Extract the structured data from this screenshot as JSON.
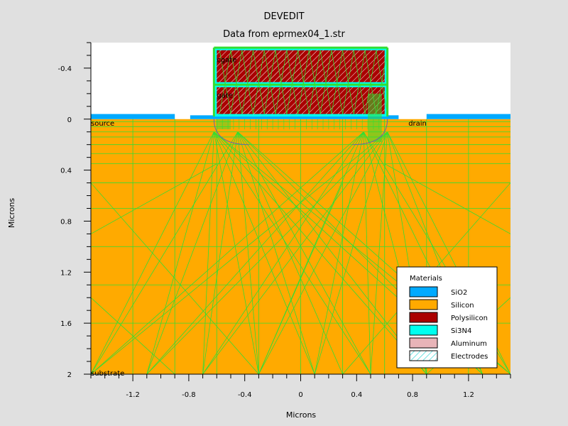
{
  "chart_data": {
    "type": "device_structure",
    "title": "DEVEDIT",
    "subtitle": "Data from eprmex04_1.str",
    "xlabel": "Microns",
    "ylabel": "Microns",
    "xlim": [
      -1.5,
      1.5
    ],
    "ylim": [
      2.0,
      -0.6
    ],
    "y_inverted": true,
    "x_ticks": [
      -1.2,
      -0.8,
      -0.4,
      0,
      0.4,
      0.8,
      1.2
    ],
    "x_tick_labels": [
      "-1.2",
      "-0.8",
      "-0.4",
      "0",
      "0.4",
      "0.8",
      "1.2"
    ],
    "y_ticks": [
      -0.4,
      0,
      0.4,
      0.8,
      1.2,
      1.6,
      2.0
    ],
    "y_tick_labels": [
      "-0.4",
      "0",
      "0.4",
      "0.8",
      "1.2",
      "1.6",
      "2"
    ],
    "mesh_color": "#33dd33",
    "regions": [
      {
        "material": "Silicon",
        "x": [
          -1.5,
          1.5
        ],
        "y": [
          0.0,
          2.0
        ]
      },
      {
        "material": "SiO2",
        "x": [
          -1.5,
          -0.9
        ],
        "y": [
          -0.04,
          0.0
        ]
      },
      {
        "material": "SiO2",
        "x": [
          0.9,
          1.5
        ],
        "y": [
          -0.04,
          0.0
        ]
      },
      {
        "material": "SiO2",
        "x": [
          -0.79,
          0.7
        ],
        "y": [
          -0.03,
          0.0
        ]
      },
      {
        "material": "Si3N4",
        "x": [
          -0.62,
          0.62
        ],
        "y": [
          -0.56,
          -0.02
        ]
      },
      {
        "material": "Polysilicon",
        "x": [
          -0.6,
          0.6
        ],
        "y": [
          -0.54,
          -0.29
        ]
      },
      {
        "material": "Polysilicon",
        "x": [
          -0.6,
          0.6
        ],
        "y": [
          -0.25,
          -0.04
        ]
      }
    ],
    "electrode_labels": [
      {
        "text": "cgate",
        "x": -0.6,
        "y": -0.47
      },
      {
        "text": "gate",
        "x": -0.6,
        "y": -0.19
      },
      {
        "text": "source",
        "x": -1.5,
        "y": 0.03
      },
      {
        "text": "drain",
        "x": 0.77,
        "y": 0.03
      },
      {
        "text": "substrate",
        "x": -1.5,
        "y": 1.99
      }
    ],
    "legend": {
      "title": "Materials",
      "position": "bottom-right",
      "entries": [
        {
          "label": "SiO2",
          "color": "#00aaff"
        },
        {
          "label": "Silicon",
          "color": "#ffaa00"
        },
        {
          "label": "Polysilicon",
          "color": "#aa0000"
        },
        {
          "label": "Si3N4",
          "color": "#00ffee"
        },
        {
          "label": "Aluminum",
          "color": "#e8b4b8"
        },
        {
          "label": "Electrodes",
          "color": "hatch"
        }
      ]
    }
  }
}
